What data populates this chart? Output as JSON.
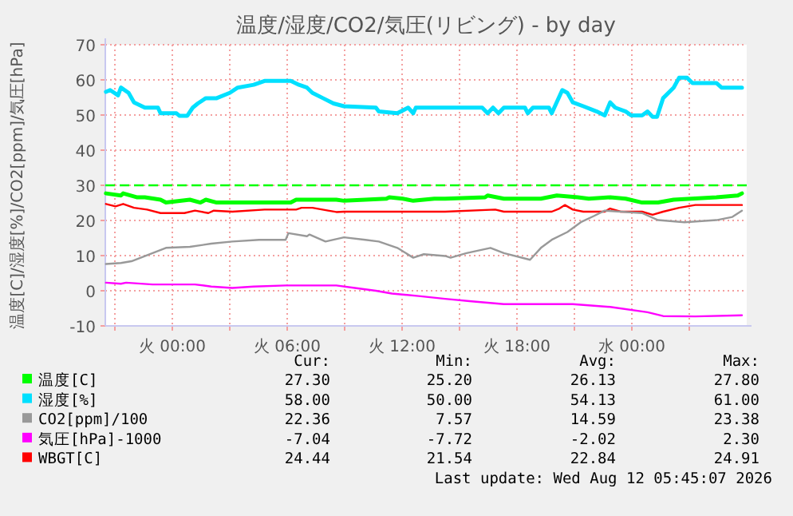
{
  "chart_data": {
    "type": "line",
    "title": "温度/湿度/CO2/気圧(リビング) - by day",
    "ylabel": "温度[C]/湿度[%]/CO2[ppm]/気圧[hPa]",
    "xlim": [
      "2026-08-10T20:30",
      "2026-08-12T06:00"
    ],
    "ylim": [
      -10,
      70
    ],
    "xticks": [
      {
        "value": "2026-08-10T21:00",
        "label": null
      },
      {
        "value": "2026-08-11T00:00",
        "label": "火 00:00"
      },
      {
        "value": "2026-08-11T03:00",
        "label": null
      },
      {
        "value": "2026-08-11T06:00",
        "label": "火 06:00"
      },
      {
        "value": "2026-08-11T09:00",
        "label": null
      },
      {
        "value": "2026-08-11T12:00",
        "label": "火 12:00"
      },
      {
        "value": "2026-08-11T15:00",
        "label": null
      },
      {
        "value": "2026-08-11T18:00",
        "label": "火 18:00"
      },
      {
        "value": "2026-08-11T21:00",
        "label": null
      },
      {
        "value": "2026-08-12T00:00",
        "label": "水 00:00"
      },
      {
        "value": "2026-08-12T03:00",
        "label": null
      }
    ],
    "yticks": [
      -10,
      0,
      10,
      20,
      30,
      40,
      50,
      60,
      70
    ],
    "grid": true,
    "legend": "bottom",
    "ref_lines": [
      {
        "axis": "y",
        "value": 30,
        "color": "#00ff00",
        "line_style": "dashed"
      }
    ],
    "series": [
      {
        "name": "温度[C]",
        "color": "#00ff00",
        "x": [
          "2026-08-10T20:32",
          "2026-08-10T21:19",
          "2026-08-10T21:26",
          "2026-08-10T22:08",
          "2026-08-10T22:34",
          "2026-08-10T23:23",
          "2026-08-10T23:40",
          "2026-08-11T00:55",
          "2026-08-11T01:28",
          "2026-08-11T01:45",
          "2026-08-11T02:19",
          "2026-08-11T06:11",
          "2026-08-11T06:28",
          "2026-08-11T08:34",
          "2026-08-11T08:58",
          "2026-08-11T11:11",
          "2026-08-11T11:20",
          "2026-08-11T12:02",
          "2026-08-11T12:35",
          "2026-08-11T13:41",
          "2026-08-11T14:15",
          "2026-08-11T16:20",
          "2026-08-11T16:28",
          "2026-08-11T17:19",
          "2026-08-11T19:15",
          "2026-08-11T20:05",
          "2026-08-11T21:11",
          "2026-08-11T21:45",
          "2026-08-11T22:52",
          "2026-08-11T23:41",
          "2026-08-12T00:32",
          "2026-08-12T01:22",
          "2026-08-12T02:11",
          "2026-08-12T04:25",
          "2026-08-12T05:32",
          "2026-08-12T05:45"
        ],
        "values": [
          27.7,
          27.1,
          27.7,
          26.6,
          26.6,
          25.9,
          25.1,
          25.9,
          25.1,
          25.9,
          25.1,
          25.1,
          25.9,
          25.9,
          25.6,
          26.2,
          26.6,
          26.2,
          25.6,
          26.2,
          26.2,
          26.6,
          27.1,
          26.2,
          26.2,
          27.1,
          26.6,
          26.2,
          26.6,
          26.2,
          25.1,
          25.1,
          25.9,
          26.6,
          27.1,
          27.7
        ]
      },
      {
        "name": "湿度[%]",
        "color": "#00e0ff",
        "x": [
          "2026-08-10T20:32",
          "2026-08-10T20:45",
          "2026-08-10T21:10",
          "2026-08-10T21:19",
          "2026-08-10T21:43",
          "2026-08-10T22:00",
          "2026-08-10T22:34",
          "2026-08-10T23:15",
          "2026-08-10T23:23",
          "2026-08-11T00:13",
          "2026-08-11T00:22",
          "2026-08-11T00:47",
          "2026-08-11T01:04",
          "2026-08-11T01:20",
          "2026-08-11T01:45",
          "2026-08-11T02:19",
          "2026-08-11T03:00",
          "2026-08-11T03:25",
          "2026-08-11T04:15",
          "2026-08-11T04:49",
          "2026-08-11T06:11",
          "2026-08-11T06:37",
          "2026-08-11T07:02",
          "2026-08-11T07:19",
          "2026-08-11T07:52",
          "2026-08-11T08:25",
          "2026-08-11T08:58",
          "2026-08-11T10:38",
          "2026-08-11T10:47",
          "2026-08-11T11:45",
          "2026-08-11T12:19",
          "2026-08-11T12:35",
          "2026-08-11T12:43",
          "2026-08-11T14:15",
          "2026-08-11T16:11",
          "2026-08-11T16:28",
          "2026-08-11T16:45",
          "2026-08-11T17:02",
          "2026-08-11T17:19",
          "2026-08-11T18:25",
          "2026-08-11T18:34",
          "2026-08-11T18:50",
          "2026-08-11T19:40",
          "2026-08-11T19:49",
          "2026-08-11T20:22",
          "2026-08-11T20:38",
          "2026-08-11T20:55",
          "2026-08-11T21:28",
          "2026-08-11T22:10",
          "2026-08-11T22:35",
          "2026-08-11T22:52",
          "2026-08-11T23:08",
          "2026-08-11T23:41",
          "2026-08-11T23:58",
          "2026-08-12T00:32",
          "2026-08-12T00:49",
          "2026-08-12T01:05",
          "2026-08-12T01:19",
          "2026-08-12T01:38",
          "2026-08-12T02:11",
          "2026-08-12T02:28",
          "2026-08-12T02:53",
          "2026-08-12T03:10",
          "2026-08-12T04:25",
          "2026-08-12T04:41",
          "2026-08-12T05:45"
        ],
        "values": [
          56.6,
          57.1,
          55.6,
          57.8,
          56.3,
          53.6,
          52.1,
          52.1,
          50.5,
          50.5,
          49.8,
          49.8,
          52.1,
          53.3,
          54.8,
          54.8,
          56.3,
          57.8,
          58.6,
          59.7,
          59.7,
          58.6,
          57.8,
          56.3,
          54.8,
          53.3,
          52.5,
          52.1,
          51.0,
          50.5,
          52.1,
          50.5,
          52.1,
          52.1,
          52.1,
          50.5,
          52.1,
          50.5,
          52.1,
          52.1,
          50.5,
          52.1,
          52.1,
          50.5,
          57.1,
          56.3,
          53.6,
          52.5,
          51.0,
          49.9,
          53.6,
          52.1,
          51.0,
          49.9,
          49.9,
          51.0,
          49.5,
          49.5,
          54.8,
          57.8,
          60.6,
          60.6,
          59.1,
          59.1,
          57.8,
          57.8
        ]
      },
      {
        "name": "CO2[ppm]/100",
        "color": "#999999",
        "x": [
          "2026-08-10T20:32",
          "2026-08-10T21:19",
          "2026-08-10T21:52",
          "2026-08-10T22:50",
          "2026-08-10T23:40",
          "2026-08-11T00:55",
          "2026-08-11T02:02",
          "2026-08-11T03:08",
          "2026-08-11T04:32",
          "2026-08-11T05:55",
          "2026-08-11T06:04",
          "2026-08-11T07:02",
          "2026-08-11T07:10",
          "2026-08-11T08:00",
          "2026-08-11T08:58",
          "2026-08-11T10:05",
          "2026-08-11T10:47",
          "2026-08-11T11:45",
          "2026-08-11T12:35",
          "2026-08-11T13:08",
          "2026-08-11T14:15",
          "2026-08-11T14:32",
          "2026-08-11T15:22",
          "2026-08-11T16:37",
          "2026-08-11T17:19",
          "2026-08-11T18:41",
          "2026-08-11T19:15",
          "2026-08-11T19:49",
          "2026-08-11T20:38",
          "2026-08-11T21:20",
          "2026-08-11T22:02",
          "2026-08-11T22:35",
          "2026-08-11T23:25",
          "2026-08-12T00:32",
          "2026-08-12T01:22",
          "2026-08-12T02:45",
          "2026-08-12T04:25",
          "2026-08-12T05:15",
          "2026-08-12T05:45"
        ],
        "values": [
          7.6,
          7.9,
          8.4,
          10.4,
          12.2,
          12.5,
          13.4,
          14.0,
          14.5,
          14.5,
          16.4,
          15.5,
          16.0,
          14.0,
          15.2,
          14.5,
          14.0,
          12.2,
          9.4,
          10.4,
          9.9,
          9.4,
          10.7,
          12.2,
          10.7,
          8.8,
          12.2,
          14.5,
          16.7,
          19.5,
          21.3,
          22.8,
          22.5,
          22.1,
          20.1,
          19.5,
          20.1,
          21.0,
          22.8
        ]
      },
      {
        "name": "気圧[hPa]-1000",
        "color": "#ff00ff",
        "x": [
          "2026-08-10T20:32",
          "2026-08-10T21:19",
          "2026-08-10T21:35",
          "2026-08-10T22:58",
          "2026-08-11T01:11",
          "2026-08-11T02:02",
          "2026-08-11T03:08",
          "2026-08-11T04:15",
          "2026-08-11T05:55",
          "2026-08-11T08:34",
          "2026-08-11T09:32",
          "2026-08-11T10:38",
          "2026-08-11T11:28",
          "2026-08-11T12:52",
          "2026-08-11T14:15",
          "2026-08-11T15:38",
          "2026-08-11T17:19",
          "2026-08-11T20:55",
          "2026-08-11T22:52",
          "2026-08-12T00:49",
          "2026-08-12T01:38",
          "2026-08-12T03:19",
          "2026-08-12T05:45"
        ],
        "values": [
          2.3,
          2.0,
          2.3,
          1.8,
          1.8,
          1.2,
          0.8,
          1.2,
          1.5,
          1.5,
          0.8,
          0.0,
          -0.8,
          -1.5,
          -2.3,
          -3.0,
          -3.8,
          -3.8,
          -4.6,
          -6.1,
          -7.2,
          -7.3,
          -7.0
        ]
      },
      {
        "name": "WBGT[C]",
        "color": "#ff0000",
        "x": [
          "2026-08-10T20:32",
          "2026-08-10T21:02",
          "2026-08-10T21:26",
          "2026-08-10T22:00",
          "2026-08-10T22:41",
          "2026-08-10T23:23",
          "2026-08-11T00:38",
          "2026-08-11T01:11",
          "2026-08-11T01:53",
          "2026-08-11T02:10",
          "2026-08-11T03:08",
          "2026-08-11T04:49",
          "2026-08-11T06:28",
          "2026-08-11T06:45",
          "2026-08-11T07:19",
          "2026-08-11T08:08",
          "2026-08-11T08:34",
          "2026-08-11T08:58",
          "2026-08-11T14:15",
          "2026-08-11T16:52",
          "2026-08-11T17:19",
          "2026-08-11T19:49",
          "2026-08-11T20:13",
          "2026-08-11T20:30",
          "2026-08-11T20:55",
          "2026-08-11T21:28",
          "2026-08-11T22:35",
          "2026-08-11T22:52",
          "2026-08-11T23:25",
          "2026-08-12T00:32",
          "2026-08-12T01:05",
          "2026-08-12T01:38",
          "2026-08-12T02:28",
          "2026-08-12T03:19",
          "2026-08-12T05:45"
        ],
        "values": [
          24.7,
          24.0,
          24.7,
          23.6,
          23.1,
          22.1,
          22.1,
          22.8,
          22.1,
          22.8,
          22.5,
          23.1,
          23.1,
          23.6,
          23.6,
          22.8,
          22.4,
          22.5,
          22.5,
          23.1,
          22.5,
          22.5,
          23.4,
          24.4,
          23.1,
          22.5,
          22.5,
          23.4,
          22.5,
          22.5,
          21.6,
          22.5,
          23.6,
          24.4,
          24.4
        ]
      }
    ],
    "annotations": [
      "Cur:",
      "Min:",
      "Avg:",
      "Max:",
      "27.30",
      "25.20",
      "26.13",
      "27.80",
      "58.00",
      "50.00",
      "54.13",
      "61.00",
      "22.36",
      "7.57",
      "14.59",
      "23.38",
      "-7.04",
      "-7.72",
      "-2.02",
      "2.30",
      "24.44",
      "21.54",
      "22.84",
      "24.91",
      "Last update: Wed Aug 12 05:45:07 2026"
    ]
  }
}
